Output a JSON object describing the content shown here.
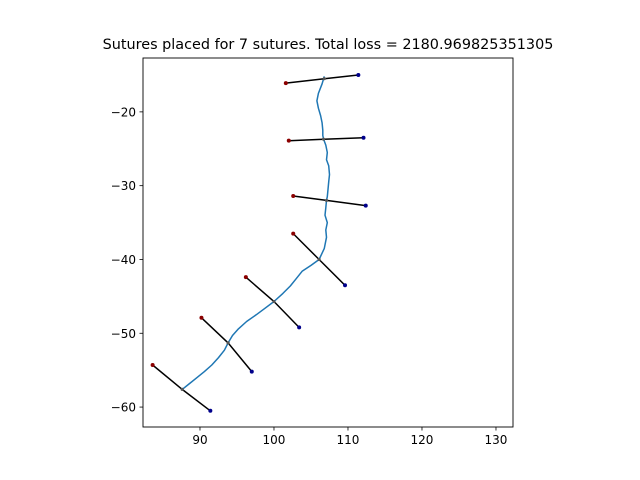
{
  "chart_data": {
    "type": "line",
    "title": "Sutures placed for 7 sutures. Total loss = 2180.969825351305",
    "xlabel": "",
    "ylabel": "",
    "xlim": [
      82.3,
      132.3
    ],
    "ylim": [
      -62.7,
      -12.7
    ],
    "xticks": [
      90,
      100,
      110,
      120,
      130
    ],
    "yticks": [
      -20,
      -30,
      -40,
      -50,
      -60
    ],
    "xtick_labels": [
      "90",
      "100",
      "110",
      "120",
      "130"
    ],
    "ytick_labels": [
      "−20",
      "−30",
      "−40",
      "−50",
      "−60"
    ],
    "grid": false,
    "wound_color": "#1f77b4",
    "suture_color": "#000000",
    "insertion_color": "#8b0000",
    "extraction_color": "#00008b",
    "center_color": "#555555",
    "wound_curve": [
      [
        106.8,
        -15.2
      ],
      [
        106.5,
        -16.2
      ],
      [
        106.0,
        -17.5
      ],
      [
        105.8,
        -18.5
      ],
      [
        106.0,
        -19.5
      ],
      [
        106.3,
        -20.5
      ],
      [
        106.5,
        -21.5
      ],
      [
        106.6,
        -22.5
      ],
      [
        106.6,
        -23.2
      ],
      [
        106.7,
        -23.7
      ],
      [
        107.0,
        -24.5
      ],
      [
        107.2,
        -25.5
      ],
      [
        107.1,
        -26.5
      ],
      [
        107.4,
        -27.3
      ],
      [
        107.5,
        -28.5
      ],
      [
        107.4,
        -29.5
      ],
      [
        107.3,
        -30.5
      ],
      [
        107.2,
        -31.5
      ],
      [
        107.1,
        -32.0
      ],
      [
        107.0,
        -33.0
      ],
      [
        106.9,
        -34.0
      ],
      [
        107.2,
        -35.0
      ],
      [
        107.0,
        -36.0
      ],
      [
        107.1,
        -37.0
      ],
      [
        106.8,
        -38.5
      ],
      [
        106.1,
        -40.0
      ],
      [
        105.0,
        -40.8
      ],
      [
        103.8,
        -41.6
      ],
      [
        103.0,
        -42.6
      ],
      [
        102.2,
        -43.6
      ],
      [
        101.2,
        -44.6
      ],
      [
        100.0,
        -45.7
      ],
      [
        98.8,
        -46.6
      ],
      [
        97.6,
        -47.5
      ],
      [
        96.3,
        -48.4
      ],
      [
        95.2,
        -49.4
      ],
      [
        94.4,
        -50.3
      ],
      [
        93.8,
        -51.3
      ],
      [
        93.3,
        -52.3
      ],
      [
        92.5,
        -53.3
      ],
      [
        91.6,
        -54.3
      ],
      [
        90.6,
        -55.2
      ],
      [
        89.6,
        -56.0
      ],
      [
        88.6,
        -56.8
      ],
      [
        87.6,
        -57.6
      ]
    ],
    "sutures": [
      {
        "insertion": [
          101.6,
          -16.1
        ],
        "center": [
          106.8,
          -15.5
        ],
        "extraction": [
          111.4,
          -15.0
        ]
      },
      {
        "insertion": [
          102.0,
          -23.9
        ],
        "center": [
          106.7,
          -23.7
        ],
        "extraction": [
          112.1,
          -23.5
        ]
      },
      {
        "insertion": [
          102.6,
          -31.4
        ],
        "center": [
          107.1,
          -32.0
        ],
        "extraction": [
          112.4,
          -32.7
        ]
      },
      {
        "insertion": [
          102.6,
          -36.5
        ],
        "center": [
          106.1,
          -40.0
        ],
        "extraction": [
          109.6,
          -43.5
        ]
      },
      {
        "insertion": [
          96.2,
          -42.4
        ],
        "center": [
          100.0,
          -45.7
        ],
        "extraction": [
          103.4,
          -49.2
        ]
      },
      {
        "insertion": [
          90.2,
          -47.9
        ],
        "center": [
          93.8,
          -51.3
        ],
        "extraction": [
          97.0,
          -55.2
        ]
      },
      {
        "insertion": [
          83.6,
          -54.3
        ],
        "center": [
          87.6,
          -57.6
        ],
        "extraction": [
          91.4,
          -60.5
        ]
      }
    ]
  }
}
